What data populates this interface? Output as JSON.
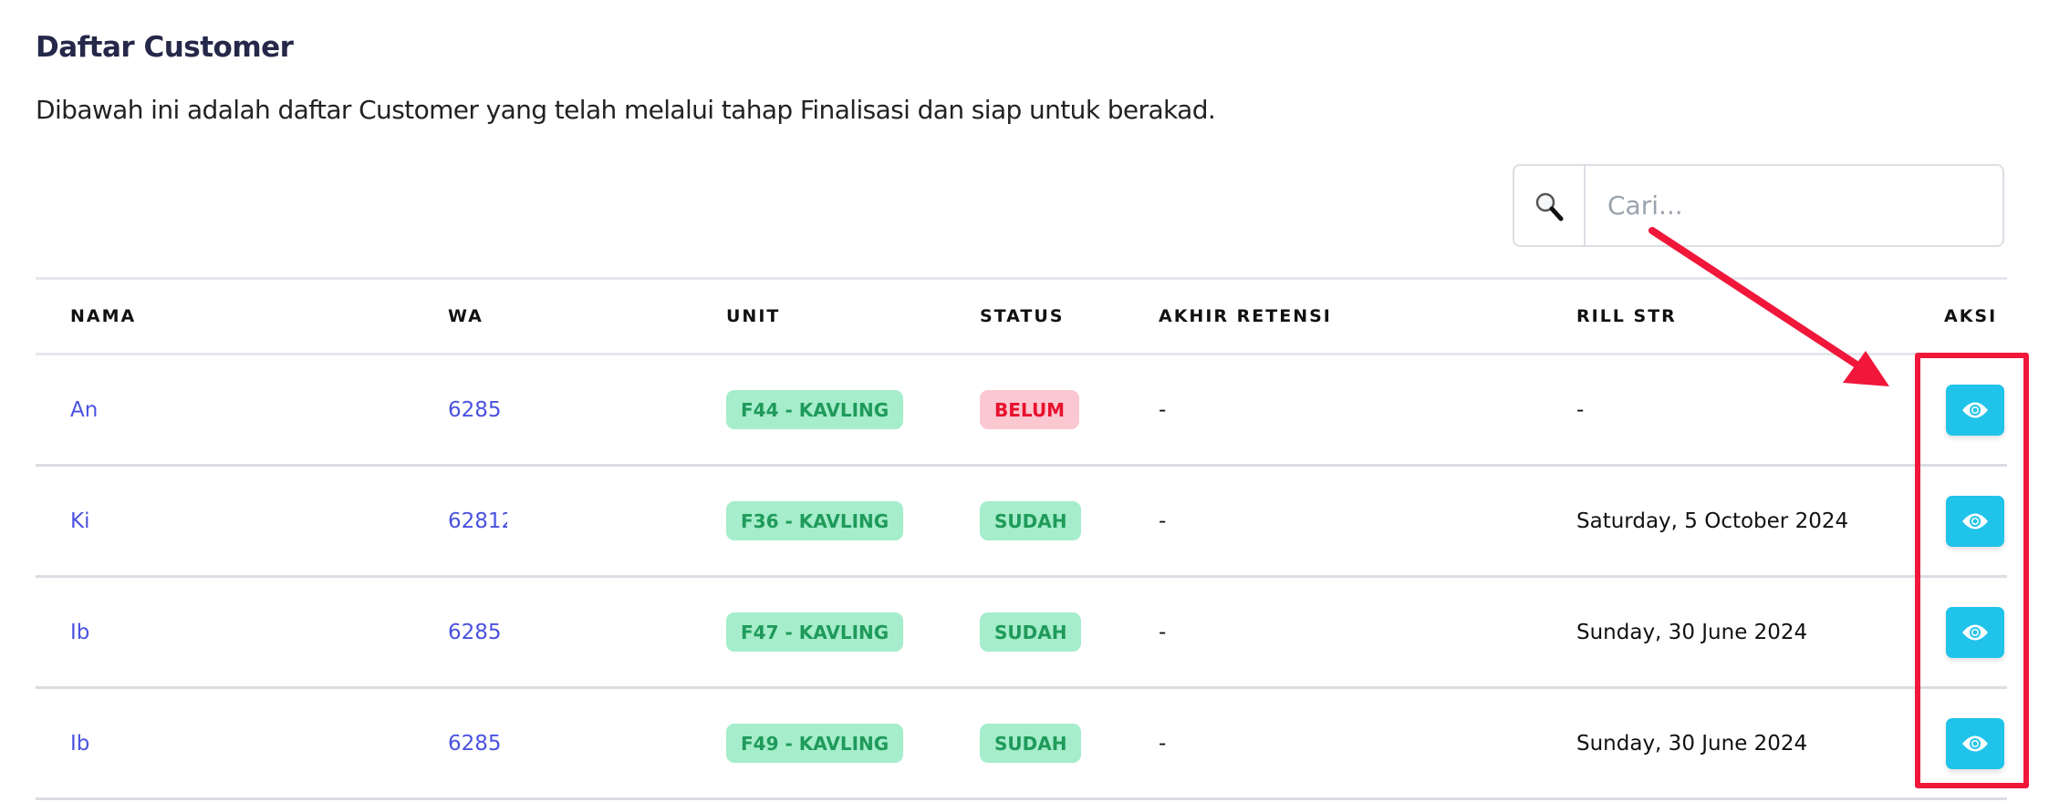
{
  "header": {
    "title": "Daftar Customer",
    "description": "Dibawah ini adalah daftar Customer yang telah melalui tahap Finalisasi dan siap untuk berakad."
  },
  "search": {
    "placeholder": "Cari...",
    "value": "",
    "icon": "search-icon"
  },
  "table": {
    "columns": [
      "NAMA",
      "WA",
      "UNIT",
      "STATUS",
      "AKHIR RETENSI",
      "RILL STR",
      "AKSI"
    ],
    "rows": [
      {
        "nama": "An",
        "wa": "6285",
        "unit": "F44 - KAVLING",
        "status": "BELUM",
        "akhir_retensi": "-",
        "rill_str": "-"
      },
      {
        "nama": "Ki",
        "wa": "62812",
        "unit": "F36 - KAVLING",
        "status": "SUDAH",
        "akhir_retensi": "-",
        "rill_str": "Saturday, 5 October 2024"
      },
      {
        "nama": "Ib",
        "wa": "6285",
        "unit": "F47 - KAVLING",
        "status": "SUDAH",
        "akhir_retensi": "-",
        "rill_str": "Sunday, 30 June 2024"
      },
      {
        "nama": "Ib",
        "wa": "6285",
        "unit": "F49 - KAVLING",
        "status": "SUDAH",
        "akhir_retensi": "-",
        "rill_str": "Sunday, 30 June 2024"
      }
    ]
  },
  "colors": {
    "accent": "#20c3ea",
    "link": "#4a52e0",
    "annotation": "#f0173a",
    "success_bg": "#a5edcb",
    "success_text": "#1f9a5a",
    "danger_bg": "#fbc7d1",
    "danger_text": "#e8112d"
  }
}
